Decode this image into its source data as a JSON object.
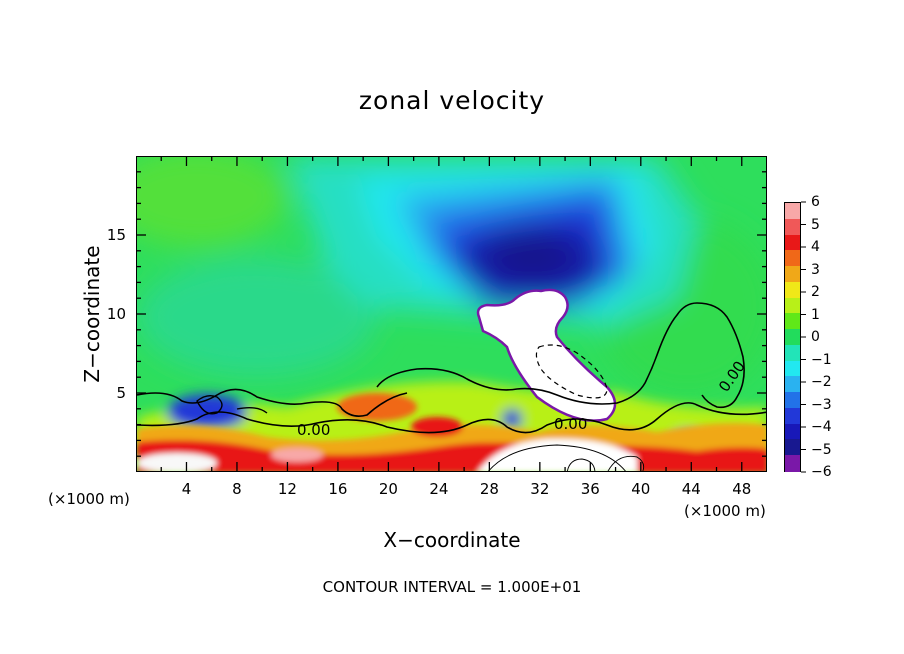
{
  "chart_data": {
    "type": "heatmap",
    "title": "zonal velocity",
    "xlabel": "X−coordinate",
    "ylabel": "Z−coordinate",
    "x_unit_left": "(×1000 m)",
    "x_unit_right": "(×1000 m)",
    "xlim": [
      0,
      50
    ],
    "ylim": [
      0,
      20
    ],
    "x_ticks": [
      "4",
      "8",
      "12",
      "16",
      "20",
      "24",
      "28",
      "32",
      "36",
      "40",
      "44",
      "48"
    ],
    "x_tick_values": [
      4,
      8,
      12,
      16,
      20,
      24,
      28,
      32,
      36,
      40,
      44,
      48
    ],
    "y_ticks": [
      "5",
      "10",
      "15"
    ],
    "y_tick_values": [
      5,
      10,
      15
    ],
    "colorbar": {
      "labels": [
        "6",
        "5",
        "4",
        "3",
        "2",
        "1",
        "0",
        "−1",
        "−2",
        "−3",
        "−4",
        "−5",
        "−6"
      ],
      "values": [
        6,
        5,
        4,
        3,
        2,
        1,
        0,
        -1,
        -2,
        -3,
        -4,
        -5,
        -6
      ],
      "colors": [
        "#f8a8a8",
        "#f05858",
        "#e81818",
        "#f06818",
        "#f0a818",
        "#f0e818",
        "#b8f018",
        "#60e818",
        "#22dc5c",
        "#22e4b8",
        "#22e8f0",
        "#2ab2f0",
        "#2272e8",
        "#2238d8",
        "#1818b8",
        "#181890",
        "#7a18a8"
      ]
    },
    "contour_labels": [
      "0.00",
      "0.00",
      "0.00"
    ],
    "contour_interval": "CONTOUR INTERVAL = 1.000E+01"
  }
}
